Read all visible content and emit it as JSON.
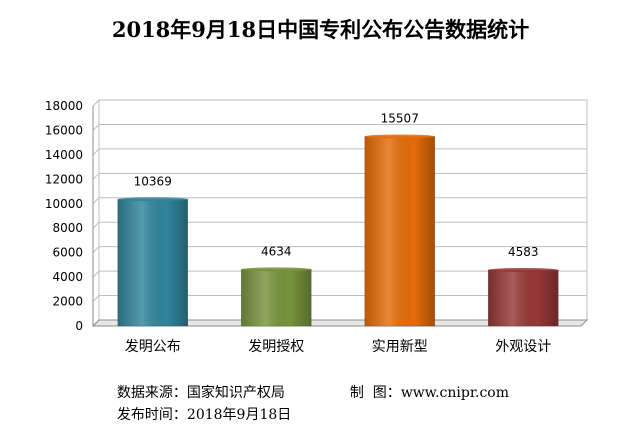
{
  "chart_data": {
    "type": "bar",
    "title": "2018年9月18日中国专利公布公告数据统计",
    "categories": [
      "发明公布",
      "发明授权",
      "实用新型",
      "外观设计"
    ],
    "values": [
      10369,
      4634,
      15507,
      4583
    ],
    "colors": [
      "#31849b",
      "#77933c",
      "#e46c0a",
      "#953735"
    ],
    "ylim": [
      0,
      18000
    ],
    "yticks": [
      0,
      2000,
      4000,
      6000,
      8000,
      10000,
      12000,
      14000,
      16000,
      18000
    ],
    "grid": true,
    "legend": "none",
    "xlabel": "",
    "ylabel": ""
  },
  "footer": {
    "source_label": "数据来源：",
    "source_value": "国家知识产权局",
    "maker_label": "制  图：",
    "maker_value": "www.cnipr.com",
    "date_label": "发布时间：",
    "date_value": "2018年9月18日"
  }
}
